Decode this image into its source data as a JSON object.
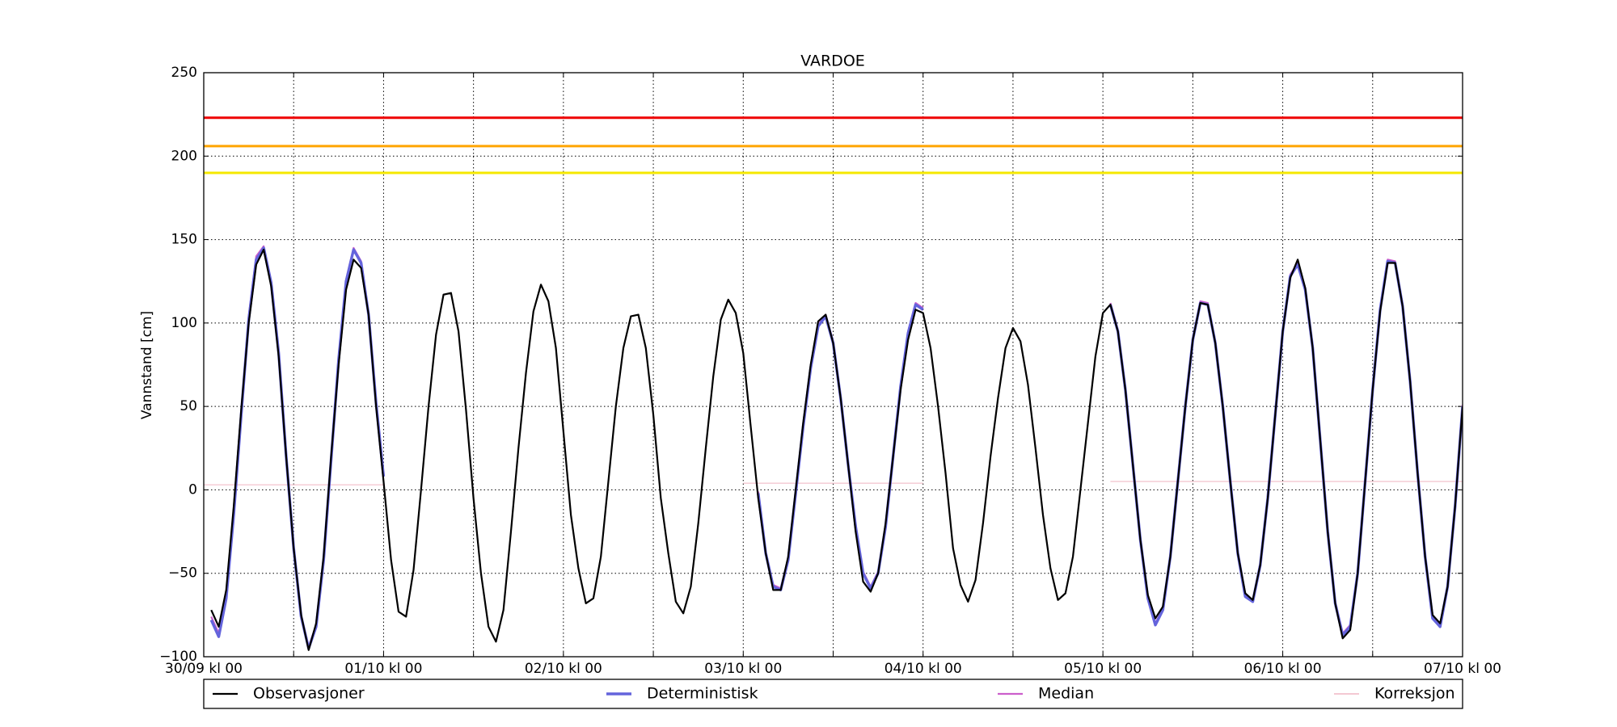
{
  "chart_data": {
    "type": "line",
    "title": "VARDOE",
    "y_label": "Vannstand [cm]",
    "xlim": [
      0,
      168
    ],
    "xticks": [
      {
        "value": 0,
        "label": "30/09 kl 00"
      },
      {
        "value": 24,
        "label": "01/10 kl 00"
      },
      {
        "value": 48,
        "label": "02/10 kl 00"
      },
      {
        "value": 72,
        "label": "03/10 kl 00"
      },
      {
        "value": 96,
        "label": "04/10 kl 00"
      },
      {
        "value": 120,
        "label": "05/10 kl 00"
      },
      {
        "value": 144,
        "label": "06/10 kl 00"
      },
      {
        "value": 168,
        "label": "07/10 kl 00"
      }
    ],
    "xminorticks": [
      12,
      36,
      60,
      84,
      108,
      132,
      156
    ],
    "ylim": [
      -100,
      250
    ],
    "yticks": [
      {
        "value": -100,
        "label": "−100"
      },
      {
        "value": -50,
        "label": "−50"
      },
      0,
      50,
      100,
      150,
      200,
      250
    ],
    "grid": true,
    "legend": "bottom",
    "thresholds": [
      {
        "value": 223,
        "color": "#ee0000"
      },
      {
        "value": 206,
        "color": "#ffa500"
      },
      {
        "value": 190,
        "color": "#f5e800"
      }
    ],
    "series": [
      {
        "name": "Observasjoner",
        "color": "#000000",
        "width": 2.2,
        "x": [
          1,
          2,
          3,
          4,
          5,
          6,
          7,
          8,
          9,
          10,
          11,
          12,
          13,
          14,
          15,
          16,
          17,
          18,
          19,
          20,
          21,
          22,
          23,
          24,
          25,
          26,
          27,
          28,
          29,
          30,
          31,
          32,
          33,
          34,
          35,
          36,
          37,
          38,
          39,
          40,
          41,
          42,
          43,
          44,
          45,
          46,
          47,
          48,
          49,
          50,
          51,
          52,
          53,
          54,
          55,
          56,
          57,
          58,
          59,
          60,
          61,
          62,
          63,
          64,
          65,
          66,
          67,
          68,
          69,
          70,
          71,
          72,
          73,
          74,
          75,
          76,
          77,
          78,
          79,
          80,
          81,
          82,
          83,
          84,
          85,
          86,
          87,
          88,
          89,
          90,
          91,
          92,
          93,
          94,
          95,
          96,
          97,
          98,
          99,
          100,
          101,
          102,
          103,
          104,
          105,
          106,
          107,
          108,
          109,
          110,
          111,
          112,
          113,
          114,
          115,
          116,
          117,
          118,
          119,
          120,
          121,
          122,
          123,
          124,
          125,
          126,
          127,
          128,
          129,
          130,
          131,
          132,
          133,
          134,
          135,
          136,
          137,
          138,
          139,
          140,
          141,
          142,
          143,
          144,
          145,
          146,
          147,
          148,
          149,
          150,
          151,
          152,
          153,
          154,
          155,
          156,
          157,
          158,
          159,
          160,
          161,
          162,
          163,
          164,
          165,
          166,
          167,
          168
        ],
        "values": [
          -72,
          -82,
          -60,
          -10,
          48,
          100,
          135,
          144,
          122,
          80,
          20,
          -35,
          -75,
          -96,
          -80,
          -40,
          20,
          75,
          120,
          138,
          133,
          105,
          50,
          5,
          -42,
          -73,
          -76,
          -48,
          0,
          50,
          93,
          117,
          118,
          95,
          48,
          -5,
          -50,
          -82,
          -91,
          -72,
          -25,
          25,
          70,
          107,
          123,
          113,
          85,
          35,
          -15,
          -47,
          -68,
          -65,
          -40,
          5,
          50,
          85,
          104,
          105,
          85,
          45,
          -5,
          -38,
          -67,
          -74,
          -58,
          -20,
          25,
          68,
          102,
          114,
          106,
          82,
          38,
          -5,
          -38,
          -60,
          -60,
          -40,
          0,
          40,
          75,
          101,
          105,
          88,
          55,
          15,
          -25,
          -55,
          -61,
          -50,
          -20,
          20,
          60,
          90,
          108,
          106,
          85,
          50,
          10,
          -35,
          -57,
          -67,
          -54,
          -20,
          20,
          55,
          85,
          97,
          89,
          63,
          25,
          -15,
          -47,
          -66,
          -62,
          -40,
          0,
          40,
          80,
          106,
          111,
          95,
          60,
          15,
          -30,
          -63,
          -77,
          -70,
          -40,
          5,
          50,
          90,
          112,
          111,
          88,
          50,
          5,
          -38,
          -62,
          -66,
          -45,
          -5,
          45,
          95,
          127,
          138,
          121,
          85,
          30,
          -25,
          -68,
          -89,
          -84,
          -50,
          5,
          60,
          107,
          136,
          136,
          110,
          65,
          10,
          -40,
          -75,
          -80,
          -58,
          -10,
          50
        ]
      },
      {
        "name": "Deterministisk",
        "color": "#6464dc",
        "width": 3.4,
        "x": [
          1,
          2,
          3,
          4,
          5,
          6,
          7,
          8,
          9,
          10,
          11,
          12,
          13,
          14,
          15,
          16,
          17,
          18,
          19,
          20,
          21,
          22,
          23,
          24,
          25,
          74,
          75,
          76,
          77,
          78,
          79,
          80,
          81,
          82,
          83,
          84,
          85,
          86,
          87,
          88,
          89,
          90,
          91,
          92,
          93,
          94,
          95,
          96,
          97,
          121,
          122,
          123,
          124,
          125,
          126,
          127,
          128,
          129,
          130,
          131,
          132,
          133,
          134,
          135,
          136,
          137,
          138,
          139,
          140,
          141,
          142,
          143,
          144,
          145,
          146,
          147,
          148,
          149,
          150,
          151,
          152,
          153,
          154,
          155,
          156,
          157,
          158,
          159,
          160,
          161,
          162,
          163,
          164,
          165,
          166,
          167,
          168
        ],
        "values": [
          -78,
          -88,
          -65,
          -15,
          45,
          102,
          138,
          145,
          124,
          82,
          20,
          -35,
          -76,
          -95,
          -82,
          -42,
          18,
          78,
          125,
          144,
          136,
          105,
          52,
          8,
          null,
          -2,
          -38,
          -58,
          -60,
          -42,
          -2,
          38,
          73,
          98,
          104,
          88,
          55,
          15,
          -22,
          -50,
          -59,
          -50,
          -22,
          20,
          62,
          94,
          111,
          108,
          null,
          111,
          95,
          60,
          15,
          -30,
          -65,
          -81,
          -72,
          -40,
          5,
          50,
          90,
          112,
          111,
          88,
          50,
          5,
          -38,
          -64,
          -67,
          -45,
          -5,
          45,
          95,
          128,
          135,
          120,
          85,
          30,
          -25,
          -68,
          -87,
          -82,
          -50,
          5,
          60,
          108,
          137,
          136,
          110,
          65,
          10,
          -40,
          -77,
          -82,
          -58,
          -10,
          50
        ]
      },
      {
        "name": "Median",
        "color": "#cc5fcc",
        "width": 2.2,
        "x": [
          1,
          2,
          3,
          4,
          5,
          6,
          7,
          8,
          9,
          10,
          11,
          12,
          13,
          14,
          15,
          16,
          17,
          18,
          19,
          20,
          21,
          22,
          23,
          24,
          25,
          74,
          75,
          76,
          77,
          78,
          79,
          80,
          81,
          82,
          83,
          84,
          85,
          86,
          87,
          88,
          89,
          90,
          91,
          92,
          93,
          94,
          95,
          96,
          97,
          121,
          122,
          123,
          124,
          125,
          126,
          127,
          128,
          129,
          130,
          131,
          132,
          133,
          134,
          135,
          136,
          137,
          138,
          139,
          140,
          141,
          142,
          143,
          144,
          145,
          146,
          147,
          148,
          149,
          150,
          151,
          152,
          153,
          154,
          155,
          156,
          157,
          158,
          159,
          160,
          161,
          162,
          163,
          164,
          165,
          166,
          167,
          168
        ],
        "values": [
          -76,
          -86,
          -63,
          -13,
          47,
          104,
          140,
          146,
          125,
          83,
          21,
          -34,
          -75,
          -94,
          -81,
          -41,
          19,
          79,
          126,
          145,
          137,
          106,
          53,
          9,
          null,
          -1,
          -37,
          -57,
          -59,
          -41,
          -1,
          39,
          74,
          99,
          105,
          89,
          56,
          16,
          -21,
          -49,
          -58,
          -49,
          -21,
          21,
          63,
          95,
          112,
          109,
          null,
          112,
          96,
          61,
          16,
          -29,
          -64,
          -80,
          -71,
          -39,
          6,
          51,
          91,
          113,
          112,
          89,
          51,
          6,
          -37,
          -63,
          -66,
          -44,
          -4,
          46,
          96,
          129,
          136,
          121,
          86,
          31,
          -24,
          -67,
          -86,
          -81,
          -49,
          6,
          61,
          109,
          138,
          137,
          111,
          66,
          11,
          -39,
          -76,
          -81,
          -57,
          -9,
          51
        ]
      },
      {
        "name": "Korreksjon",
        "color": "#f4c8d2",
        "width": 1.4,
        "x": [
          0,
          24,
          25,
          72,
          96,
          97,
          121,
          168
        ],
        "values": [
          3,
          3,
          null,
          4,
          4,
          null,
          5,
          5
        ]
      }
    ]
  }
}
